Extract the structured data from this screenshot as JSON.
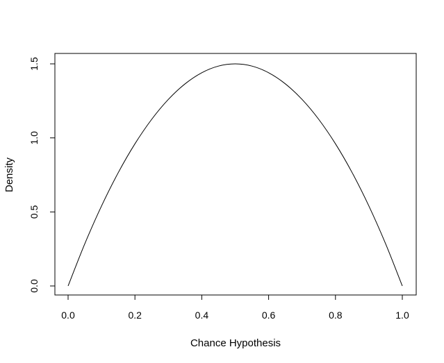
{
  "chart_data": {
    "type": "line",
    "title": "",
    "xlabel": "Chance Hypothesis",
    "ylabel": "Density",
    "xlim": [
      0,
      1
    ],
    "ylim": [
      0,
      1.5
    ],
    "x_ticks": [
      0.0,
      0.2,
      0.4,
      0.6,
      0.8,
      1.0
    ],
    "x_tick_labels": [
      "0.0",
      "0.2",
      "0.4",
      "0.6",
      "0.8",
      "1.0"
    ],
    "y_ticks": [
      0.0,
      0.5,
      1.0,
      1.5
    ],
    "y_tick_labels": [
      "0.0",
      "0.5",
      "1.0",
      "1.5"
    ],
    "grid": false,
    "series": [
      {
        "x": [
          0.0,
          0.05,
          0.1,
          0.15,
          0.2,
          0.25,
          0.3,
          0.35,
          0.4,
          0.45,
          0.5,
          0.55,
          0.6,
          0.65,
          0.7,
          0.75,
          0.8,
          0.85,
          0.9,
          0.95,
          1.0
        ],
        "y": [
          0.0,
          0.285,
          0.54,
          0.765,
          0.96,
          1.125,
          1.26,
          1.365,
          1.44,
          1.485,
          1.5,
          1.485,
          1.44,
          1.365,
          1.26,
          1.125,
          0.96,
          0.765,
          0.54,
          0.285,
          0.0
        ],
        "color": "#000000"
      }
    ]
  }
}
